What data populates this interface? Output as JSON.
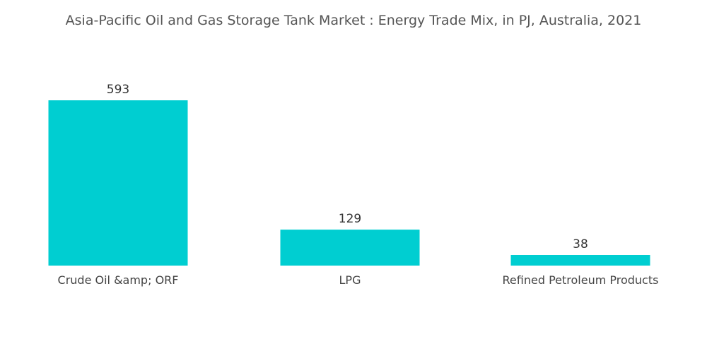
{
  "chart_data": {
    "type": "bar",
    "title": "Asia-Pacific Oil and Gas Storage Tank Market : Energy Trade Mix, in PJ, Australia, 2021",
    "categories": [
      "Crude Oil &amp; ORF",
      "LPG",
      "Refined Petroleum Products"
    ],
    "values": [
      593,
      129,
      38
    ],
    "xlabel": "",
    "ylabel": "",
    "grid": false,
    "legend": "none",
    "bar_color": "#00CED1"
  }
}
